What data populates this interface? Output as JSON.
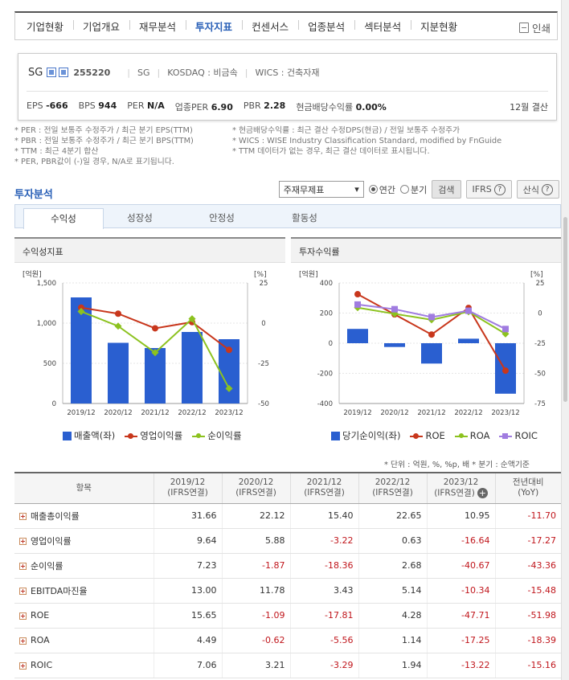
{
  "nav": {
    "items": [
      "기업현황",
      "기업개요",
      "재무분석",
      "투자지표",
      "컨센서스",
      "업종분석",
      "섹터분석",
      "지분현황"
    ],
    "active_index": 3,
    "print_label": "인쇄"
  },
  "company": {
    "name": "SG",
    "code": "255220",
    "short_name": "SG",
    "market": "KOSDAQ : 비금속",
    "wics": "WICS : 건축자재",
    "settlement": "12월 결산"
  },
  "metrics": [
    {
      "label": "EPS",
      "value": "-666"
    },
    {
      "label": "BPS",
      "value": "944"
    },
    {
      "label": "PER",
      "value": "N/A"
    },
    {
      "label": "업종PER",
      "value": "6.90"
    },
    {
      "label": "PBR",
      "value": "2.28"
    },
    {
      "label": "현금배당수익률",
      "value": "0.00%"
    }
  ],
  "notes": {
    "left": [
      "* PER : 전일 보통주 수정주가 / 최근 분기 EPS(TTM)",
      "* PBR : 전일 보통주 수정주가 / 최근 분기 BPS(TTM)",
      "* TTM : 최근 4분기 합산",
      "* PER, PBR값이 (-)일 경우, N/A로 표기됩니다."
    ],
    "right": [
      "* 현금배당수익률 : 최근 결산 수정DPS(현금) / 전일 보통주 수정주가",
      "* WICS : WISE Industry Classification Standard, modified by FnGuide",
      "* TTM 데이터가 없는 경우, 최근 결산 데이터로 표시됩니다."
    ]
  },
  "section_title": "투자분석",
  "controls": {
    "select_value": "주재무제표",
    "radio_annual": "연간",
    "radio_quarter": "분기",
    "search_button": "검색",
    "ifrs_button": "IFRS",
    "formula_button": "산식"
  },
  "tabs": [
    "수익성",
    "성장성",
    "안정성",
    "활동성"
  ],
  "panels": {
    "left_title": "수익성지표",
    "right_title": "투자수익률"
  },
  "legend_left": [
    "매출액(좌)",
    "영업이익률",
    "순이익률"
  ],
  "legend_right": [
    "당기순이익(좌)",
    "ROE",
    "ROA",
    "ROIC"
  ],
  "colors": {
    "bar": "#2a5fd0",
    "red": "#c8371c",
    "green": "#8cc21f",
    "purple": "#a07ce0",
    "negative": "#c0161c",
    "accent": "#2a60b7"
  },
  "chart_data": [
    {
      "type": "bar",
      "title": "수익성지표",
      "categories": [
        "2019/12",
        "2020/12",
        "2021/12",
        "2022/12",
        "2023/12"
      ],
      "ylabel_left": "[억원]",
      "ylabel_right": "[%]",
      "ylim_left": [
        0,
        1500
      ],
      "yticks_left": [
        "1,500",
        "1,000",
        "500",
        "0"
      ],
      "ylim_right": [
        -50,
        25
      ],
      "yticks_right": [
        "25",
        "0",
        "-25",
        "-50"
      ],
      "series": [
        {
          "name": "매출액(좌)",
          "type": "bar",
          "axis": "left",
          "values": [
            1320,
            755,
            690,
            890,
            800
          ]
        },
        {
          "name": "영업이익률",
          "type": "line",
          "axis": "right",
          "values": [
            9.64,
            5.88,
            -3.22,
            0.63,
            -16.64
          ]
        },
        {
          "name": "순이익률",
          "type": "line",
          "axis": "right",
          "values": [
            7.23,
            -1.87,
            -18.36,
            2.68,
            -40.67
          ]
        }
      ]
    },
    {
      "type": "bar",
      "title": "투자수익률",
      "categories": [
        "2019/12",
        "2020/12",
        "2021/12",
        "2022/12",
        "2023/12"
      ],
      "ylabel_left": "[억원]",
      "ylabel_right": "[%]",
      "ylim_left": [
        -400,
        400
      ],
      "yticks_left": [
        "400",
        "200",
        "0",
        "-200",
        "-400"
      ],
      "ylim_right": [
        -75,
        25
      ],
      "yticks_right": [
        "25",
        "0",
        "-25",
        "-50",
        "-75"
      ],
      "series": [
        {
          "name": "당기순이익(좌)",
          "type": "bar",
          "axis": "left",
          "values": [
            95,
            -25,
            -135,
            30,
            -335
          ]
        },
        {
          "name": "ROE",
          "type": "line",
          "axis": "right",
          "values": [
            15.65,
            -1.09,
            -17.81,
            4.28,
            -47.71
          ]
        },
        {
          "name": "ROA",
          "type": "line",
          "axis": "right",
          "values": [
            4.49,
            -0.62,
            -5.56,
            1.14,
            -17.25
          ]
        },
        {
          "name": "ROIC",
          "type": "line",
          "axis": "right",
          "values": [
            7.06,
            3.21,
            -3.29,
            1.94,
            -13.22
          ]
        }
      ]
    }
  ],
  "unit_note": "* 단위 : 억원, %, %p, 배        * 분기 : 순액기준",
  "table": {
    "headers": [
      "항목",
      "2019/12\n(IFRS연결)",
      "2020/12\n(IFRS연결)",
      "2021/12\n(IFRS연결)",
      "2022/12\n(IFRS연결)",
      "2023/12\n(IFRS연결)",
      "전년대비\n(YoY)"
    ],
    "rows": [
      {
        "label": "매출총이익률",
        "values": [
          "31.66",
          "22.12",
          "15.40",
          "22.65",
          "10.95",
          "-11.70"
        ]
      },
      {
        "label": "영업이익률",
        "values": [
          "9.64",
          "5.88",
          "-3.22",
          "0.63",
          "-16.64",
          "-17.27"
        ]
      },
      {
        "label": "순이익률",
        "values": [
          "7.23",
          "-1.87",
          "-18.36",
          "2.68",
          "-40.67",
          "-43.36"
        ]
      },
      {
        "label": "EBITDA마진율",
        "values": [
          "13.00",
          "11.78",
          "3.43",
          "5.14",
          "-10.34",
          "-15.48"
        ]
      },
      {
        "label": "ROE",
        "values": [
          "15.65",
          "-1.09",
          "-17.81",
          "4.28",
          "-47.71",
          "-51.98"
        ]
      },
      {
        "label": "ROA",
        "values": [
          "4.49",
          "-0.62",
          "-5.56",
          "1.14",
          "-17.25",
          "-18.39"
        ]
      },
      {
        "label": "ROIC",
        "values": [
          "7.06",
          "3.21",
          "-3.29",
          "1.94",
          "-13.22",
          "-15.16"
        ]
      }
    ]
  }
}
